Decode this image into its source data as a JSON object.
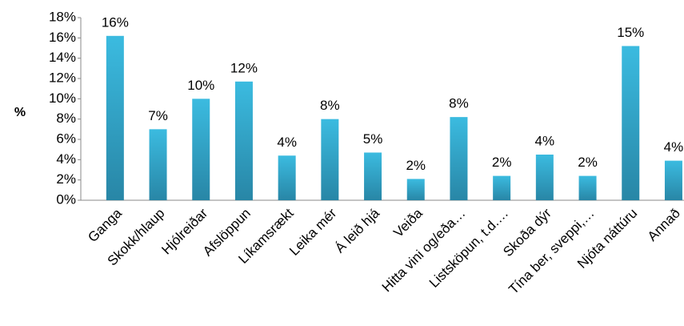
{
  "chart_data": {
    "type": "bar",
    "y_label": "%",
    "categories": [
      "Ganga",
      "Skokk/hlaup",
      "Hjólreiðar",
      "Afslöppun",
      "Líkamsrækt",
      "Leika mér",
      "Á leið hjá",
      "Veiða",
      "Hitta vini og/eða…",
      "Listsköpun, t.d.…",
      "Skoða dýr",
      "Tína ber, sveppi,…",
      "Njóta náttúru",
      "Annað"
    ],
    "values": [
      16.2,
      7.0,
      10.0,
      11.7,
      4.4,
      8.0,
      4.7,
      2.1,
      8.2,
      2.4,
      4.5,
      2.4,
      15.2,
      3.9
    ],
    "value_labels": [
      "16%",
      "7%",
      "10%",
      "12%",
      "4%",
      "8%",
      "5%",
      "2%",
      "8%",
      "2%",
      "4%",
      "2%",
      "15%",
      "4%"
    ],
    "color": "#34a9cf",
    "ylim": [
      0,
      18
    ],
    "yticks": [
      {
        "value": 0,
        "label": "0%"
      },
      {
        "value": 2,
        "label": "2%"
      },
      {
        "value": 4,
        "label": "4%"
      },
      {
        "value": 6,
        "label": "6%"
      },
      {
        "value": 8,
        "label": "8%"
      },
      {
        "value": 10,
        "label": "10%"
      },
      {
        "value": 12,
        "label": "12%"
      },
      {
        "value": 14,
        "label": "14%"
      },
      {
        "value": 16,
        "label": "16%"
      },
      {
        "value": 18,
        "label": "18%"
      }
    ],
    "grid": false
  }
}
